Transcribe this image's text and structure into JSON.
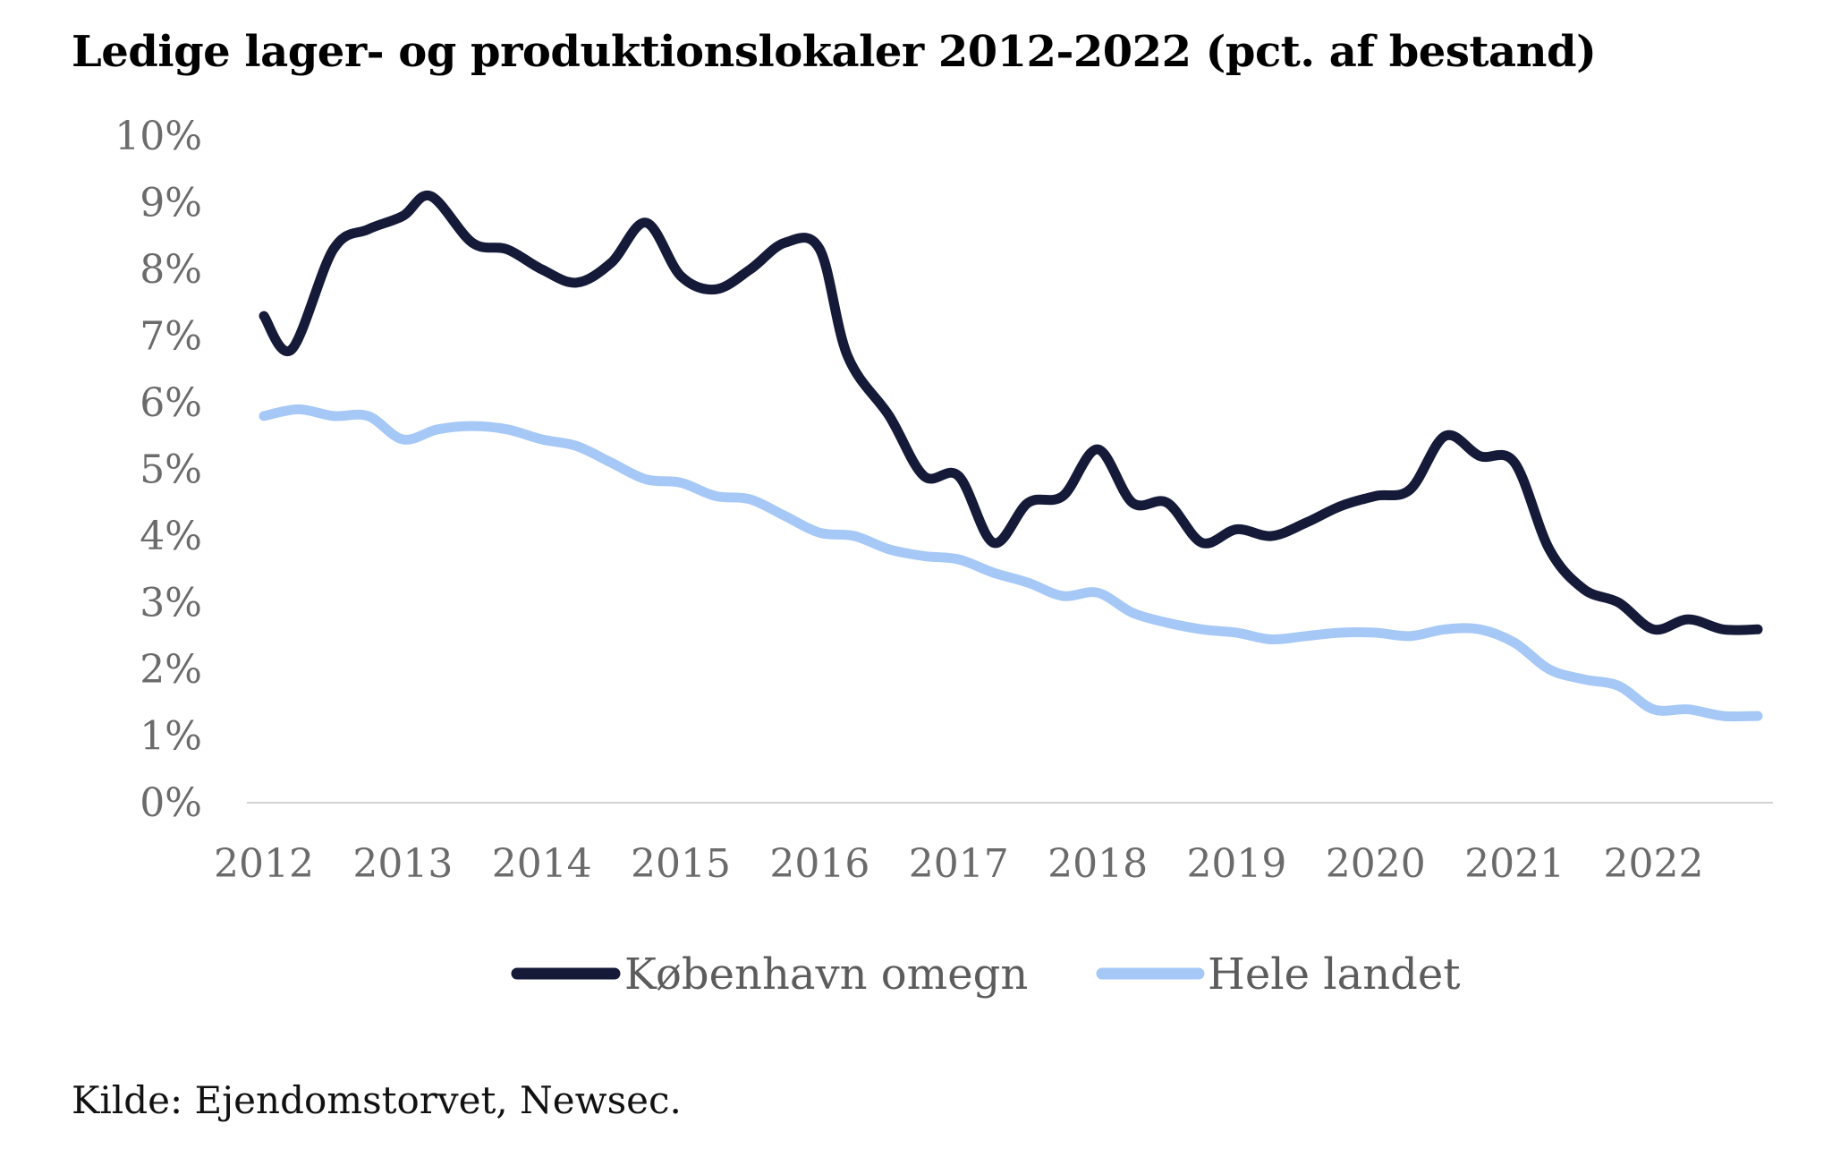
{
  "title": "Ledige lager- og produktionslokaler 2012-2022 (pct. af bestand)",
  "source": "Kilde: Ejendomstorvet, Newsec.",
  "chart_data": {
    "type": "line",
    "title": "Ledige lager- og produktionslokaler 2012-2022 (pct. af bestand)",
    "xlabel": "",
    "ylabel": "",
    "xlim": [
      2012,
      2022.75
    ],
    "ylim": [
      0,
      10
    ],
    "grid": false,
    "legend_position": "bottom",
    "x_ticks": [
      2012,
      2013,
      2014,
      2015,
      2016,
      2017,
      2018,
      2019,
      2020,
      2021,
      2022
    ],
    "x_tick_labels": [
      "2012",
      "2013",
      "2014",
      "2015",
      "2016",
      "2017",
      "2018",
      "2019",
      "2020",
      "2021",
      "2022"
    ],
    "y_ticks": [
      0,
      1,
      2,
      3,
      4,
      5,
      6,
      7,
      8,
      9,
      10
    ],
    "y_tick_labels": [
      "0%",
      "1%",
      "2%",
      "3%",
      "4%",
      "5%",
      "6%",
      "7%",
      "8%",
      "9%",
      "10%"
    ],
    "series": [
      {
        "name": "København omegn",
        "color": "#141a38",
        "x": [
          2012,
          2012.2,
          2012.5,
          2012.75,
          2013,
          2013.2,
          2013.5,
          2013.75,
          2014,
          2014.25,
          2014.5,
          2014.75,
          2015,
          2015.25,
          2015.5,
          2015.75,
          2016,
          2016.2,
          2016.5,
          2016.75,
          2017,
          2017.25,
          2017.5,
          2017.75,
          2018,
          2018.25,
          2018.5,
          2018.75,
          2019,
          2019.25,
          2019.5,
          2019.75,
          2020,
          2020.25,
          2020.5,
          2020.75,
          2021,
          2021.25,
          2021.5,
          2021.75,
          2022,
          2022.25,
          2022.5,
          2022.75
        ],
        "values": [
          7.3,
          6.8,
          8.3,
          8.6,
          8.8,
          9.1,
          8.4,
          8.3,
          8.0,
          7.8,
          8.1,
          8.7,
          7.9,
          7.7,
          8.0,
          8.4,
          8.3,
          6.7,
          5.8,
          4.9,
          4.9,
          3.9,
          4.5,
          4.6,
          5.3,
          4.5,
          4.5,
          3.9,
          4.1,
          4.0,
          4.2,
          4.45,
          4.6,
          4.7,
          5.5,
          5.2,
          5.1,
          3.8,
          3.2,
          3.0,
          2.6,
          2.75,
          2.6,
          2.6
        ]
      },
      {
        "name": "Hele landet",
        "color": "#a6c8f7",
        "x": [
          2012,
          2012.25,
          2012.5,
          2012.75,
          2013,
          2013.25,
          2013.5,
          2013.75,
          2014,
          2014.25,
          2014.5,
          2014.75,
          2015,
          2015.25,
          2015.5,
          2015.75,
          2016,
          2016.25,
          2016.5,
          2016.75,
          2017,
          2017.25,
          2017.5,
          2017.75,
          2018,
          2018.25,
          2018.5,
          2018.75,
          2019,
          2019.25,
          2019.5,
          2019.75,
          2020,
          2020.25,
          2020.5,
          2020.75,
          2021,
          2021.25,
          2021.5,
          2021.75,
          2022,
          2022.25,
          2022.5,
          2022.75
        ],
        "values": [
          5.8,
          5.9,
          5.8,
          5.8,
          5.45,
          5.6,
          5.65,
          5.6,
          5.45,
          5.35,
          5.1,
          4.85,
          4.8,
          4.6,
          4.55,
          4.3,
          4.05,
          4.0,
          3.8,
          3.7,
          3.65,
          3.45,
          3.3,
          3.1,
          3.15,
          2.85,
          2.7,
          2.6,
          2.55,
          2.45,
          2.5,
          2.55,
          2.55,
          2.5,
          2.6,
          2.6,
          2.4,
          2.0,
          1.85,
          1.75,
          1.4,
          1.4,
          1.3,
          1.3
        ]
      }
    ]
  }
}
